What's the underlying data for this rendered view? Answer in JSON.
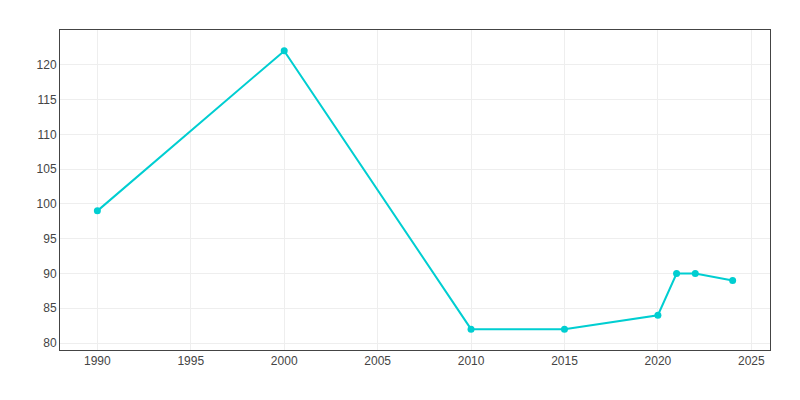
{
  "chart_data": {
    "type": "line",
    "x": [
      1990,
      2000,
      2010,
      2015,
      2020,
      2021,
      2022,
      2024
    ],
    "values": [
      99,
      122,
      82,
      82,
      84,
      90,
      90,
      89
    ],
    "color": "#00CED1",
    "marker": "circle",
    "xlim": [
      1988,
      2026
    ],
    "ylim": [
      79,
      125
    ],
    "xticks": [
      1990,
      1995,
      2000,
      2005,
      2010,
      2015,
      2020,
      2025
    ],
    "yticks": [
      80,
      85,
      90,
      95,
      100,
      105,
      110,
      115,
      120
    ],
    "grid": true
  }
}
